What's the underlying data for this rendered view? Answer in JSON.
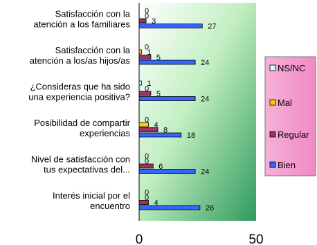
{
  "chart_data": {
    "type": "bar",
    "orientation": "horizontal",
    "categories": [
      [
        "Satisfacción con la",
        "atención a los familiares"
      ],
      [
        "Satisfacción con la",
        "atención a los/as hijos/as"
      ],
      [
        "¿Consideras que ha sido",
        "una experiencia positiva?"
      ],
      [
        "Posibilidad de compartir",
        "experiencias"
      ],
      [
        "Nivel de satisfacción con",
        "tus expectativas del..."
      ],
      [
        "Interés inicial por el",
        "encuentro"
      ]
    ],
    "series": [
      {
        "name": "NS/NC",
        "color": "#ccffff",
        "values": [
          0,
          0,
          1,
          0,
          0,
          0
        ]
      },
      {
        "name": "Mal",
        "color": "#ffcc00",
        "values": [
          0,
          1,
          0,
          4,
          0,
          0
        ]
      },
      {
        "name": "Regular",
        "color": "#993366",
        "values": [
          3,
          5,
          5,
          8,
          6,
          4
        ]
      },
      {
        "name": "Bien",
        "color": "#3366ff",
        "values": [
          27,
          24,
          24,
          18,
          24,
          26
        ]
      }
    ],
    "xlim": [
      0,
      50
    ],
    "xticks": [
      0,
      50
    ],
    "grid": false,
    "legend_position": "right"
  }
}
